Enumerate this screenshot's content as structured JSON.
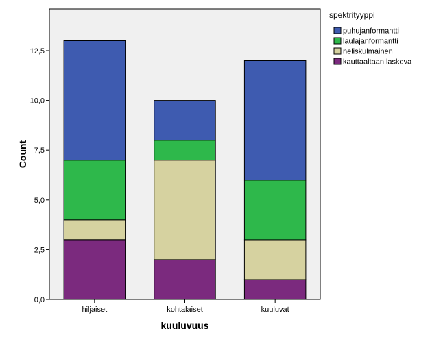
{
  "chart_data": {
    "type": "bar",
    "stacked": true,
    "categories": [
      "hiljaiset",
      "kohtalaiset",
      "kuuluvat"
    ],
    "series": [
      {
        "name": "kauttaaltaan laskeva",
        "color": "#7B2A7E",
        "values": [
          3,
          2,
          1
        ]
      },
      {
        "name": "neliskulmainen",
        "color": "#D6D2A0",
        "values": [
          1,
          5,
          2
        ]
      },
      {
        "name": "laulajanformantti",
        "color": "#2EB84B",
        "values": [
          3,
          1,
          3
        ]
      },
      {
        "name": "puhujanformantti",
        "color": "#3E5BB0",
        "values": [
          6,
          2,
          6
        ]
      }
    ],
    "legend_order": [
      "puhujanformantti",
      "laulajanformantti",
      "neliskulmainen",
      "kauttaaltaan laskeva"
    ],
    "legend_title": "spektrityyppi",
    "legend_position": "top-right",
    "xlabel": "kuuluvuus",
    "ylabel": "Count",
    "ylim": [
      0,
      14.6
    ],
    "yticks": [
      0,
      2.5,
      5,
      7.5,
      10,
      12.5
    ],
    "ytick_labels": [
      "0,0",
      "2,5",
      "5,0",
      "7,5",
      "10,0",
      "12,5"
    ],
    "plot_background": "#F0F0F0"
  }
}
